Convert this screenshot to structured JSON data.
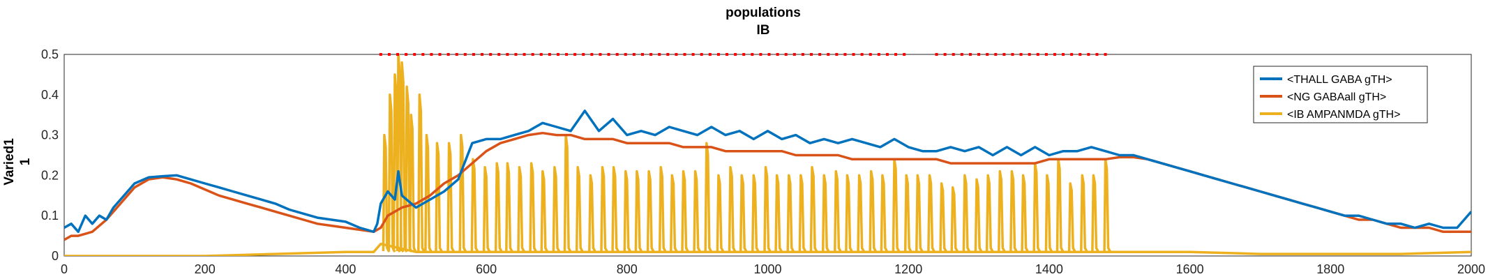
{
  "chart_data": {
    "type": "line",
    "title": [
      "populations",
      "IB"
    ],
    "ylabel": [
      "Varied1",
      "1"
    ],
    "xlabel": "",
    "xlim": [
      0,
      2000
    ],
    "ylim": [
      0,
      0.5
    ],
    "x_ticks": [
      "0",
      "200",
      "400",
      "600",
      "800",
      "1000",
      "1200",
      "1400",
      "1600",
      "1800",
      "2000"
    ],
    "y_ticks": [
      "0",
      "0.1",
      "0.2",
      "0.3",
      "0.4",
      "0.5"
    ],
    "grid": false,
    "legend_position": "top-right",
    "series": [
      {
        "name": "<THALL GABA gTH>",
        "color": "#0072BD",
        "points": [
          [
            0,
            0.07
          ],
          [
            10,
            0.08
          ],
          [
            20,
            0.06
          ],
          [
            30,
            0.1
          ],
          [
            40,
            0.08
          ],
          [
            50,
            0.1
          ],
          [
            60,
            0.09
          ],
          [
            70,
            0.12
          ],
          [
            80,
            0.14
          ],
          [
            100,
            0.18
          ],
          [
            120,
            0.195
          ],
          [
            140,
            0.198
          ],
          [
            160,
            0.2
          ],
          [
            180,
            0.19
          ],
          [
            200,
            0.18
          ],
          [
            220,
            0.17
          ],
          [
            240,
            0.16
          ],
          [
            260,
            0.15
          ],
          [
            280,
            0.14
          ],
          [
            300,
            0.13
          ],
          [
            320,
            0.115
          ],
          [
            340,
            0.105
          ],
          [
            360,
            0.095
          ],
          [
            380,
            0.09
          ],
          [
            400,
            0.085
          ],
          [
            420,
            0.07
          ],
          [
            440,
            0.06
          ],
          [
            445,
            0.08
          ],
          [
            450,
            0.13
          ],
          [
            460,
            0.16
          ],
          [
            470,
            0.14
          ],
          [
            475,
            0.21
          ],
          [
            480,
            0.15
          ],
          [
            500,
            0.12
          ],
          [
            520,
            0.14
          ],
          [
            540,
            0.16
          ],
          [
            560,
            0.19
          ],
          [
            580,
            0.28
          ],
          [
            600,
            0.29
          ],
          [
            620,
            0.29
          ],
          [
            640,
            0.3
          ],
          [
            660,
            0.31
          ],
          [
            680,
            0.33
          ],
          [
            700,
            0.32
          ],
          [
            720,
            0.31
          ],
          [
            740,
            0.36
          ],
          [
            760,
            0.31
          ],
          [
            780,
            0.34
          ],
          [
            800,
            0.3
          ],
          [
            820,
            0.31
          ],
          [
            840,
            0.3
          ],
          [
            860,
            0.32
          ],
          [
            880,
            0.31
          ],
          [
            900,
            0.3
          ],
          [
            920,
            0.32
          ],
          [
            940,
            0.3
          ],
          [
            960,
            0.31
          ],
          [
            980,
            0.29
          ],
          [
            1000,
            0.31
          ],
          [
            1020,
            0.29
          ],
          [
            1040,
            0.3
          ],
          [
            1060,
            0.28
          ],
          [
            1080,
            0.29
          ],
          [
            1100,
            0.28
          ],
          [
            1120,
            0.29
          ],
          [
            1140,
            0.28
          ],
          [
            1160,
            0.27
          ],
          [
            1180,
            0.29
          ],
          [
            1200,
            0.27
          ],
          [
            1220,
            0.26
          ],
          [
            1240,
            0.26
          ],
          [
            1260,
            0.27
          ],
          [
            1280,
            0.26
          ],
          [
            1300,
            0.27
          ],
          [
            1320,
            0.25
          ],
          [
            1340,
            0.27
          ],
          [
            1360,
            0.25
          ],
          [
            1380,
            0.27
          ],
          [
            1400,
            0.25
          ],
          [
            1420,
            0.26
          ],
          [
            1440,
            0.26
          ],
          [
            1460,
            0.27
          ],
          [
            1480,
            0.26
          ],
          [
            1500,
            0.25
          ],
          [
            1520,
            0.25
          ],
          [
            1540,
            0.24
          ],
          [
            1560,
            0.23
          ],
          [
            1580,
            0.22
          ],
          [
            1600,
            0.21
          ],
          [
            1620,
            0.2
          ],
          [
            1640,
            0.19
          ],
          [
            1660,
            0.18
          ],
          [
            1680,
            0.17
          ],
          [
            1700,
            0.16
          ],
          [
            1720,
            0.15
          ],
          [
            1740,
            0.14
          ],
          [
            1760,
            0.13
          ],
          [
            1780,
            0.12
          ],
          [
            1800,
            0.11
          ],
          [
            1820,
            0.1
          ],
          [
            1840,
            0.1
          ],
          [
            1860,
            0.09
          ],
          [
            1880,
            0.08
          ],
          [
            1900,
            0.08
          ],
          [
            1920,
            0.07
          ],
          [
            1940,
            0.08
          ],
          [
            1960,
            0.07
          ],
          [
            1980,
            0.07
          ],
          [
            2000,
            0.11
          ]
        ]
      },
      {
        "name": "<NG GABAall gTH>",
        "color": "#D95319",
        "points": [
          [
            0,
            0.04
          ],
          [
            10,
            0.05
          ],
          [
            20,
            0.05
          ],
          [
            40,
            0.06
          ],
          [
            60,
            0.09
          ],
          [
            80,
            0.13
          ],
          [
            100,
            0.17
          ],
          [
            120,
            0.19
          ],
          [
            140,
            0.195
          ],
          [
            160,
            0.19
          ],
          [
            180,
            0.18
          ],
          [
            200,
            0.165
          ],
          [
            220,
            0.15
          ],
          [
            240,
            0.14
          ],
          [
            260,
            0.13
          ],
          [
            280,
            0.12
          ],
          [
            300,
            0.11
          ],
          [
            320,
            0.1
          ],
          [
            340,
            0.09
          ],
          [
            360,
            0.08
          ],
          [
            380,
            0.075
          ],
          [
            400,
            0.07
          ],
          [
            420,
            0.065
          ],
          [
            440,
            0.06
          ],
          [
            450,
            0.07
          ],
          [
            460,
            0.1
          ],
          [
            480,
            0.12
          ],
          [
            500,
            0.13
          ],
          [
            520,
            0.15
          ],
          [
            540,
            0.18
          ],
          [
            560,
            0.2
          ],
          [
            580,
            0.23
          ],
          [
            600,
            0.26
          ],
          [
            620,
            0.28
          ],
          [
            640,
            0.29
          ],
          [
            660,
            0.3
          ],
          [
            680,
            0.305
          ],
          [
            700,
            0.3
          ],
          [
            720,
            0.3
          ],
          [
            740,
            0.29
          ],
          [
            760,
            0.29
          ],
          [
            780,
            0.29
          ],
          [
            800,
            0.28
          ],
          [
            820,
            0.28
          ],
          [
            840,
            0.28
          ],
          [
            860,
            0.28
          ],
          [
            880,
            0.27
          ],
          [
            900,
            0.27
          ],
          [
            920,
            0.27
          ],
          [
            940,
            0.26
          ],
          [
            960,
            0.26
          ],
          [
            980,
            0.26
          ],
          [
            1000,
            0.26
          ],
          [
            1020,
            0.26
          ],
          [
            1040,
            0.25
          ],
          [
            1060,
            0.25
          ],
          [
            1080,
            0.25
          ],
          [
            1100,
            0.25
          ],
          [
            1120,
            0.24
          ],
          [
            1140,
            0.24
          ],
          [
            1160,
            0.24
          ],
          [
            1180,
            0.24
          ],
          [
            1200,
            0.24
          ],
          [
            1220,
            0.24
          ],
          [
            1240,
            0.24
          ],
          [
            1260,
            0.23
          ],
          [
            1280,
            0.23
          ],
          [
            1300,
            0.23
          ],
          [
            1320,
            0.23
          ],
          [
            1340,
            0.23
          ],
          [
            1360,
            0.23
          ],
          [
            1380,
            0.23
          ],
          [
            1400,
            0.24
          ],
          [
            1420,
            0.24
          ],
          [
            1440,
            0.24
          ],
          [
            1460,
            0.24
          ],
          [
            1480,
            0.24
          ],
          [
            1500,
            0.245
          ],
          [
            1520,
            0.245
          ],
          [
            1540,
            0.24
          ],
          [
            1560,
            0.23
          ],
          [
            1580,
            0.22
          ],
          [
            1600,
            0.21
          ],
          [
            1620,
            0.2
          ],
          [
            1640,
            0.19
          ],
          [
            1660,
            0.18
          ],
          [
            1680,
            0.17
          ],
          [
            1700,
            0.16
          ],
          [
            1720,
            0.15
          ],
          [
            1740,
            0.14
          ],
          [
            1760,
            0.13
          ],
          [
            1780,
            0.12
          ],
          [
            1800,
            0.11
          ],
          [
            1820,
            0.1
          ],
          [
            1840,
            0.09
          ],
          [
            1860,
            0.09
          ],
          [
            1880,
            0.08
          ],
          [
            1900,
            0.07
          ],
          [
            1920,
            0.07
          ],
          [
            1940,
            0.07
          ],
          [
            1960,
            0.06
          ],
          [
            1980,
            0.06
          ],
          [
            2000,
            0.06
          ]
        ]
      },
      {
        "name": "<IB AMPANMDA gTH>",
        "color": "#EDB120",
        "baseline": [
          [
            0,
            0.0
          ],
          [
            100,
            0.0
          ],
          [
            200,
            0.0
          ],
          [
            300,
            0.005
          ],
          [
            400,
            0.01
          ],
          [
            440,
            0.01
          ],
          [
            450,
            0.03
          ],
          [
            500,
            0.01
          ],
          [
            1480,
            0.01
          ],
          [
            1490,
            0.01
          ],
          [
            1600,
            0.01
          ],
          [
            1700,
            0.005
          ],
          [
            1800,
            0.005
          ],
          [
            1900,
            0.005
          ],
          [
            2000,
            0.01
          ]
        ],
        "spikes": [
          [
            455,
            0.3
          ],
          [
            463,
            0.4
          ],
          [
            470,
            0.45
          ],
          [
            475,
            0.5
          ],
          [
            480,
            0.48
          ],
          [
            487,
            0.42
          ],
          [
            493,
            0.35
          ],
          [
            505,
            0.4
          ],
          [
            515,
            0.3
          ],
          [
            530,
            0.28
          ],
          [
            547,
            0.28
          ],
          [
            564,
            0.3
          ],
          [
            581,
            0.24
          ],
          [
            598,
            0.22
          ],
          [
            615,
            0.23
          ],
          [
            630,
            0.23
          ],
          [
            647,
            0.22
          ],
          [
            664,
            0.23
          ],
          [
            680,
            0.21
          ],
          [
            697,
            0.22
          ],
          [
            713,
            0.3
          ],
          [
            730,
            0.22
          ],
          [
            748,
            0.2
          ],
          [
            765,
            0.22
          ],
          [
            781,
            0.22
          ],
          [
            798,
            0.21
          ],
          [
            814,
            0.21
          ],
          [
            831,
            0.21
          ],
          [
            848,
            0.22
          ],
          [
            864,
            0.2
          ],
          [
            880,
            0.21
          ],
          [
            897,
            0.21
          ],
          [
            913,
            0.28
          ],
          [
            930,
            0.2
          ],
          [
            947,
            0.22
          ],
          [
            963,
            0.2
          ],
          [
            980,
            0.2
          ],
          [
            997,
            0.22
          ],
          [
            1013,
            0.2
          ],
          [
            1030,
            0.2
          ],
          [
            1047,
            0.2
          ],
          [
            1063,
            0.22
          ],
          [
            1080,
            0.2
          ],
          [
            1097,
            0.21
          ],
          [
            1113,
            0.2
          ],
          [
            1130,
            0.2
          ],
          [
            1147,
            0.21
          ],
          [
            1163,
            0.2
          ],
          [
            1180,
            0.24
          ],
          [
            1197,
            0.2
          ],
          [
            1213,
            0.2
          ],
          [
            1230,
            0.2
          ],
          [
            1247,
            0.18
          ],
          [
            1263,
            0.17
          ],
          [
            1280,
            0.2
          ],
          [
            1297,
            0.19
          ],
          [
            1313,
            0.2
          ],
          [
            1330,
            0.21
          ],
          [
            1347,
            0.21
          ],
          [
            1363,
            0.2
          ],
          [
            1380,
            0.23
          ],
          [
            1397,
            0.2
          ],
          [
            1413,
            0.24
          ],
          [
            1430,
            0.18
          ],
          [
            1447,
            0.2
          ],
          [
            1463,
            0.2
          ],
          [
            1480,
            0.24
          ]
        ]
      },
      {
        "name": "stimulus markers",
        "color": "#FF0000",
        "style": "dotted",
        "y": 0.5,
        "segments": [
          [
            450,
            1200
          ],
          [
            1240,
            1480
          ]
        ]
      }
    ]
  }
}
